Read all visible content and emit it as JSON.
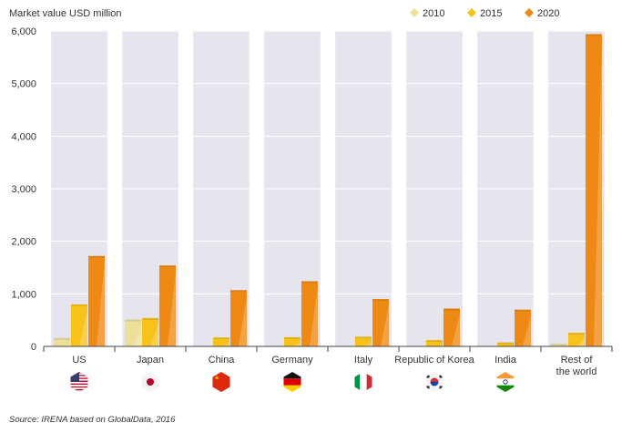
{
  "chart_data": {
    "type": "bar",
    "ylabel": "Market value USD million",
    "ylim": [
      0,
      6000
    ],
    "yticks": [
      0,
      1000,
      2000,
      3000,
      4000,
      5000,
      6000
    ],
    "ytick_labels": [
      "0",
      "1,000",
      "2,000",
      "3,000",
      "4,000",
      "5,000",
      "6,000"
    ],
    "categories": [
      {
        "label": [
          "US"
        ],
        "flag": "us-flag-icon"
      },
      {
        "label": [
          "Japan"
        ],
        "flag": "japan-flag-icon"
      },
      {
        "label": [
          "China"
        ],
        "flag": "china-flag-icon"
      },
      {
        "label": [
          "Germany"
        ],
        "flag": "germany-flag-icon"
      },
      {
        "label": [
          "Italy"
        ],
        "flag": "italy-flag-icon"
      },
      {
        "label": [
          "Republic of Korea"
        ],
        "flag": "korea-flag-icon"
      },
      {
        "label": [
          "India"
        ],
        "flag": "india-flag-icon"
      },
      {
        "label": [
          "Rest of",
          "the world"
        ],
        "flag": ""
      }
    ],
    "series": [
      {
        "name": "2010",
        "color": "#ecdf9a",
        "values": [
          160,
          510,
          0,
          0,
          0,
          0,
          0,
          50
        ]
      },
      {
        "name": "2015",
        "color": "#f8c21a",
        "values": [
          800,
          540,
          170,
          175,
          185,
          120,
          75,
          260
        ]
      },
      {
        "name": "2020",
        "color": "#ee8a13",
        "values": [
          1720,
          1540,
          1070,
          1240,
          900,
          720,
          700,
          5940
        ]
      }
    ],
    "legend_position": "top-right",
    "source": "Source: IRENA based on GlobalData, 2016"
  }
}
